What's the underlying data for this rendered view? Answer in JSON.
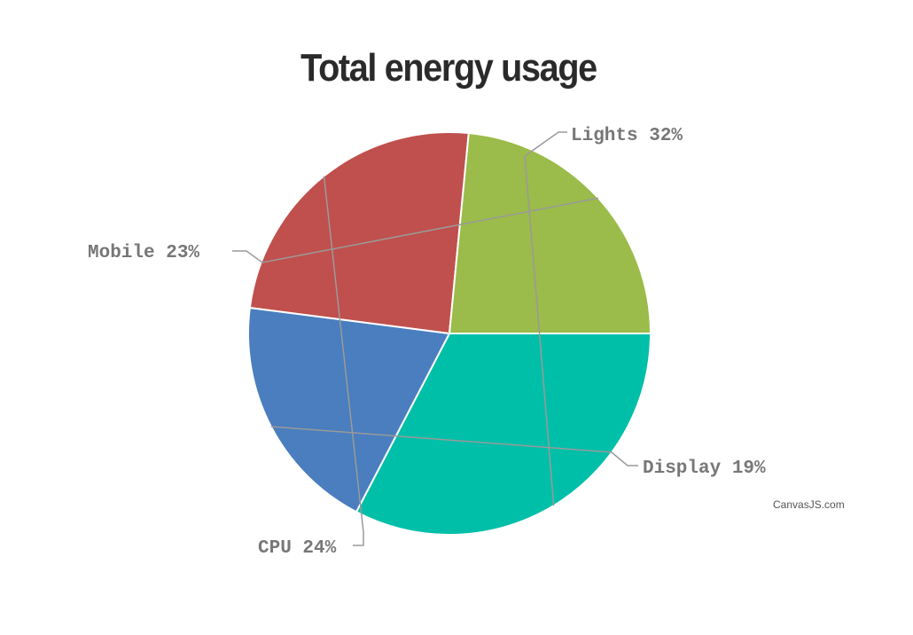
{
  "chart_data": {
    "type": "pie",
    "title": "Total energy usage",
    "slices": [
      {
        "label": "Lights",
        "value": 32,
        "label_text": "Lights 32%",
        "color": "#00bfa8"
      },
      {
        "label": "Display",
        "value": 19,
        "label_text": "Display 19%",
        "color": "#4a7ebf"
      },
      {
        "label": "CPU",
        "value": 24,
        "label_text": "CPU 24%",
        "color": "#c0504d"
      },
      {
        "label": "Mobile",
        "value": 23,
        "label_text": "Mobile 23%",
        "color": "#9bbb4a"
      }
    ],
    "start_angle_deg": 0,
    "direction": "clockwise",
    "legend": "none"
  },
  "credit": "CanvasJS.com"
}
